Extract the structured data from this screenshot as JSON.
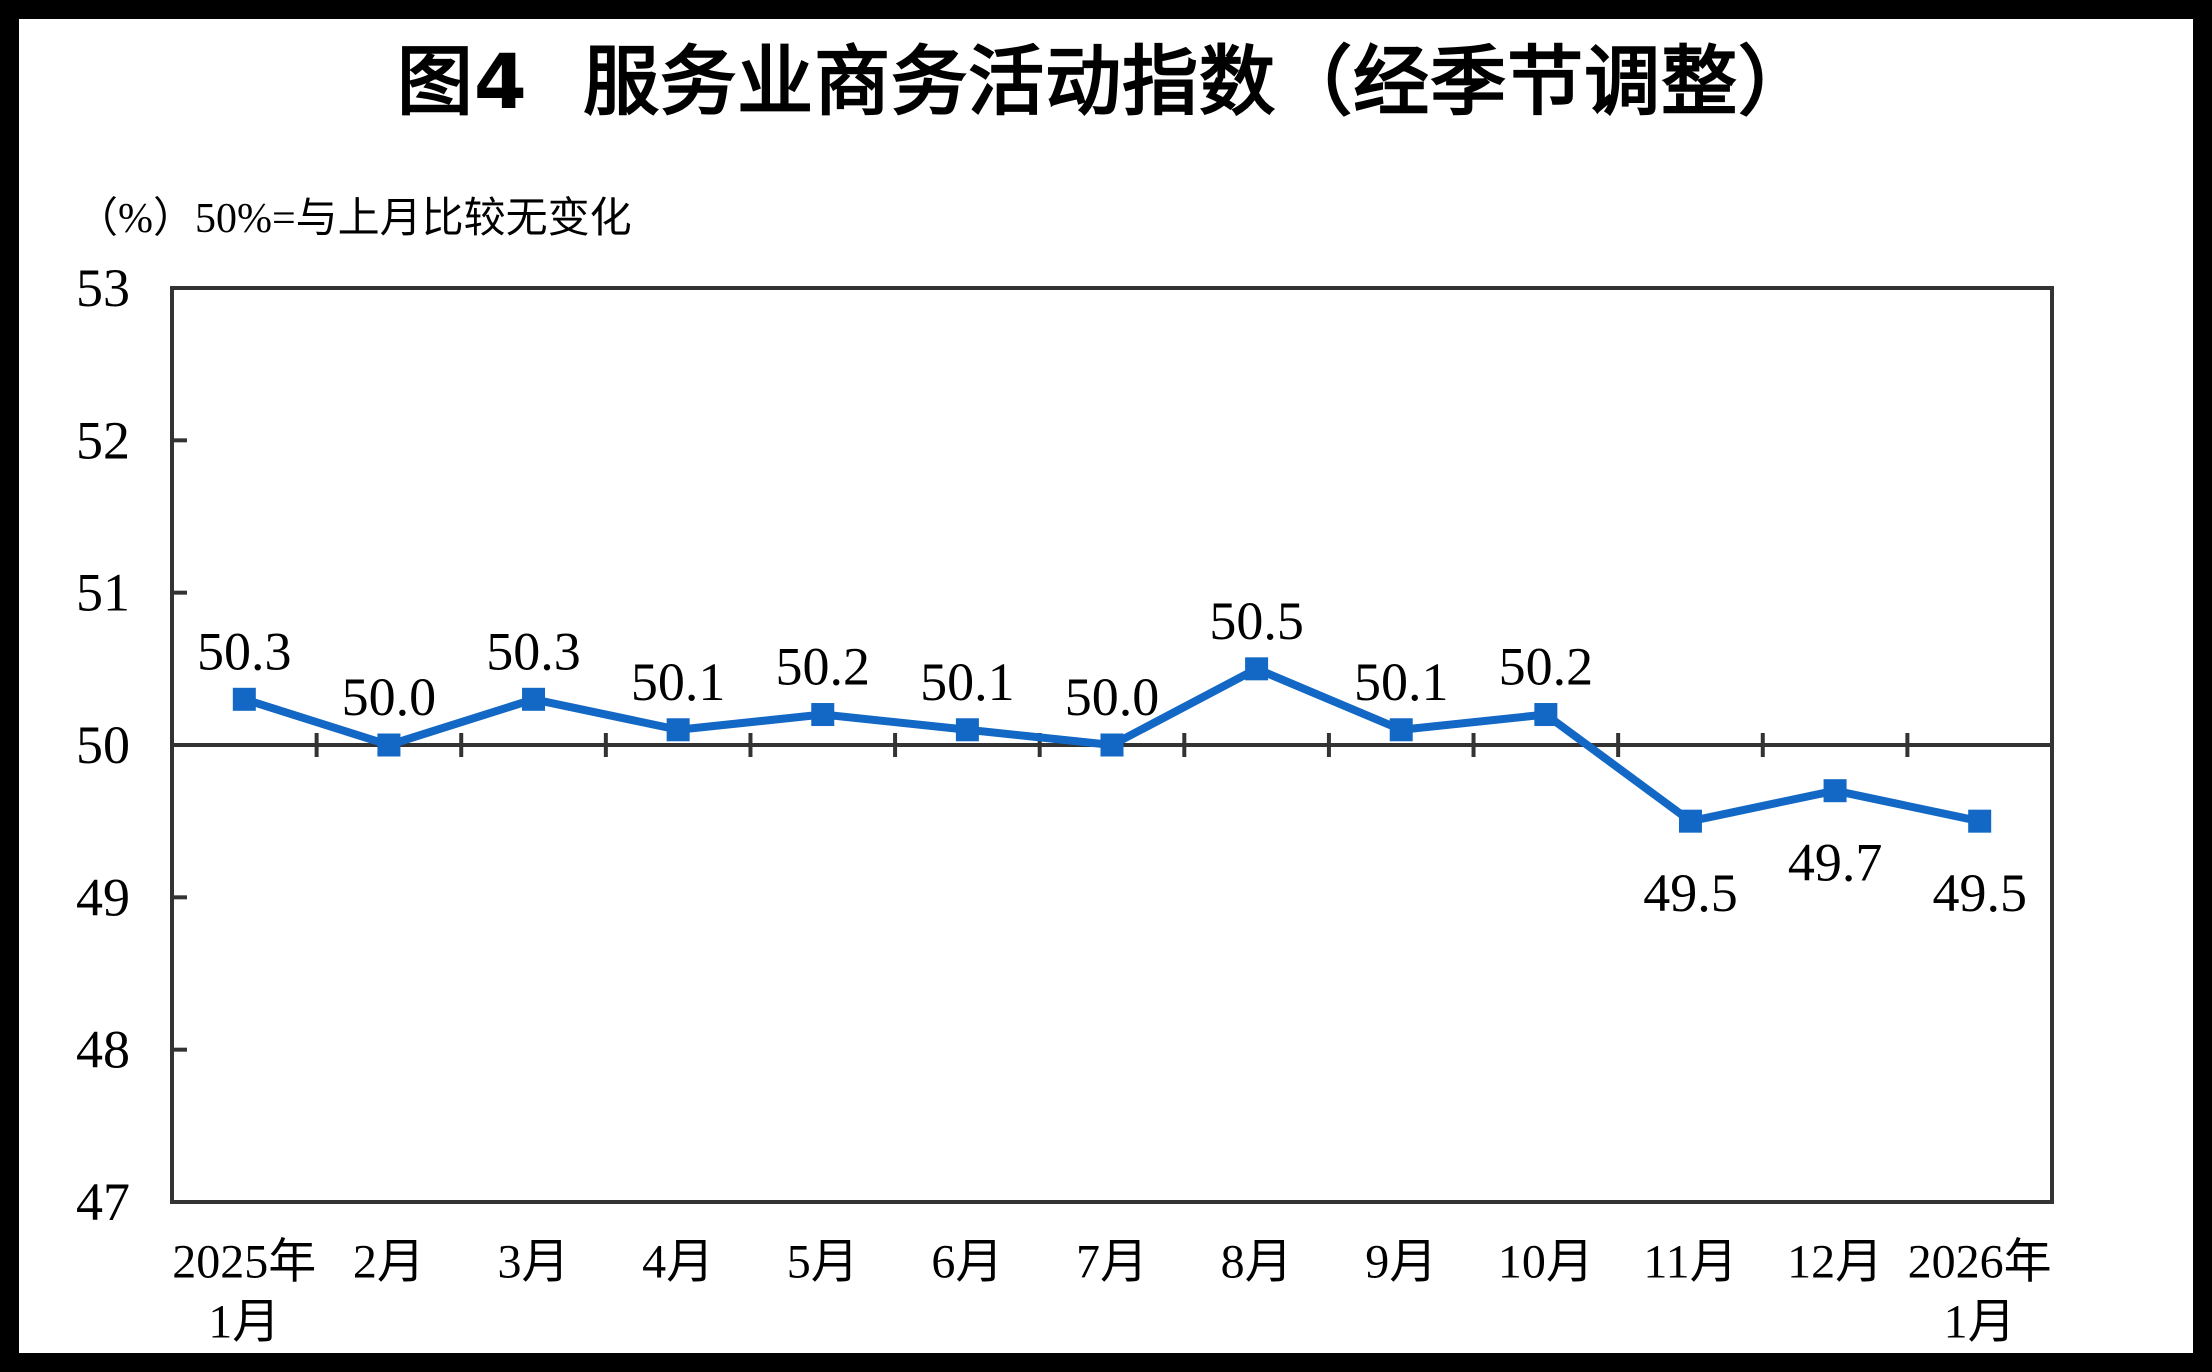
{
  "title": "图4 服务业商务活动指数（经季节调整）",
  "subtitle": "（%）50%=与上月比较无变化",
  "frame_color": "#000000",
  "background_color": "#ffffff",
  "chart_data": {
    "type": "line",
    "title": "图4 服务业商务活动指数（经季节调整）",
    "unit_note": "（%）50%=与上月比较无变化",
    "categories": [
      [
        "2025年",
        "1月"
      ],
      [
        "2月"
      ],
      [
        "3月"
      ],
      [
        "4月"
      ],
      [
        "5月"
      ],
      [
        "6月"
      ],
      [
        "7月"
      ],
      [
        "8月"
      ],
      [
        "9月"
      ],
      [
        "10月"
      ],
      [
        "11月"
      ],
      [
        "12月"
      ],
      [
        "2026年",
        "1月"
      ]
    ],
    "values": [
      50.3,
      50.0,
      50.3,
      50.1,
      50.2,
      50.1,
      50.0,
      50.5,
      50.1,
      50.2,
      49.5,
      49.7,
      49.5
    ],
    "data_labels": [
      "50.3",
      "50.0",
      "50.3",
      "50.1",
      "50.2",
      "50.1",
      "50.0",
      "50.5",
      "50.1",
      "50.2",
      "49.5",
      "49.7",
      "49.5"
    ],
    "label_side": [
      "above",
      "above",
      "above",
      "above",
      "above",
      "above",
      "above",
      "above",
      "above",
      "above",
      "below",
      "below",
      "below"
    ],
    "ylim": [
      47,
      53
    ],
    "yticks": [
      53,
      52,
      51,
      50,
      49,
      48,
      47
    ],
    "reference_line": 50,
    "grid": false,
    "legend": false,
    "line_color": "#1268c4",
    "marker": "square",
    "marker_color": "#1268c4",
    "axis_color": "#333333",
    "label_color": "#000000"
  }
}
